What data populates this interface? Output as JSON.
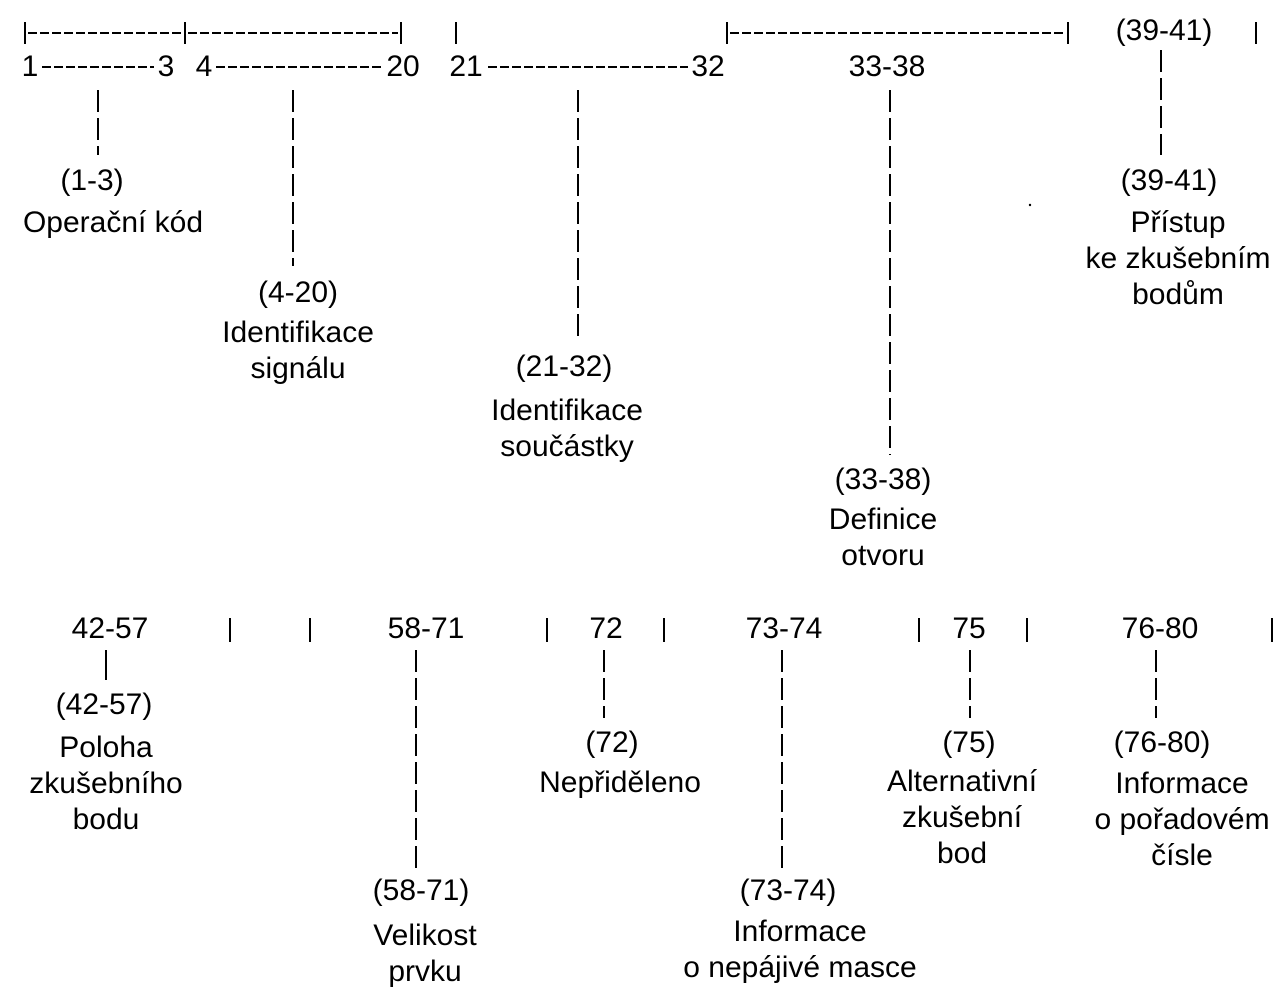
{
  "top_row": {
    "range_1_3_start": "1",
    "range_1_3_end": "3",
    "range_4_20_start": "4",
    "range_4_20_end": "20",
    "range_21_32_start": "21",
    "range_21_32_end": "32",
    "range_33_38": "33-38",
    "range_39_41": "(39-41)"
  },
  "fields_top": [
    {
      "code": "(1-3)",
      "label": "Operační kód"
    },
    {
      "code": "(4-20)",
      "label": "Identifikace\nsignálu"
    },
    {
      "code": "(21-32)",
      "label": "Identifikace\nsoučástky"
    },
    {
      "code": "(33-38)",
      "label": "Definice\notvoru"
    },
    {
      "code": "(39-41)",
      "label": "Přístup\nke zkušebním\nbodům"
    }
  ],
  "bottom_row": {
    "range_42_57": "42-57",
    "range_58_71": "58-71",
    "range_72": "72",
    "range_73_74": "73-74",
    "range_75": "75",
    "range_76_80": "76-80"
  },
  "fields_bottom": [
    {
      "code": "(42-57)",
      "label": "Poloha\nzkušebního\nbodu"
    },
    {
      "code": "(58-71)",
      "label": "Velikost\nprvku"
    },
    {
      "code": "(72)",
      "label": "Nepřiděleno"
    },
    {
      "code": "(73-74)",
      "label": "Informace\no nepájivé masce"
    },
    {
      "code": "(75)",
      "label": "Alternativní\nzkušební\nbod"
    },
    {
      "code": "(76-80)",
      "label": "Informace\no pořadovém\nčísle"
    }
  ],
  "colors": {
    "ink": "#000000",
    "background": "#ffffff"
  }
}
